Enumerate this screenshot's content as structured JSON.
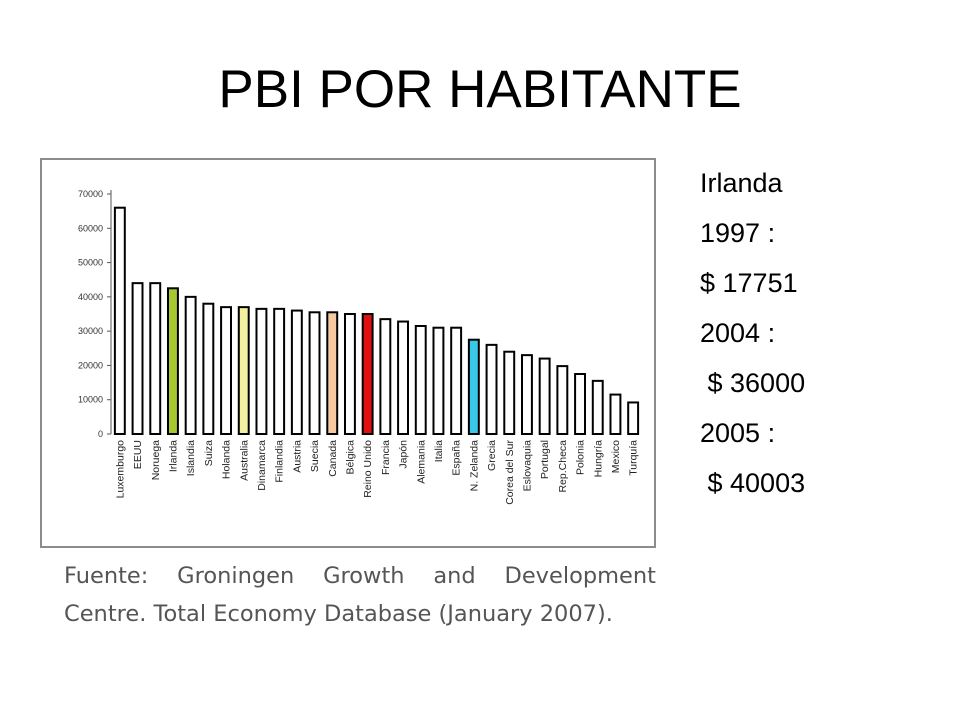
{
  "slide": {
    "title": "PBI POR HABITANTE",
    "source": "Fuente: Groningen Growth and Development Centre. Total Economy Database (January 2007)."
  },
  "side_panel": {
    "lines": [
      "Irlanda",
      "1997 :",
      "$ 17751",
      "2004 :",
      " $ 36000",
      "2005 :",
      " $ 40003"
    ]
  },
  "chart_data": {
    "type": "bar",
    "yticks": [
      0,
      10000,
      20000,
      30000,
      40000,
      50000,
      60000,
      70000
    ],
    "ylim": [
      0,
      70000
    ],
    "grid": false,
    "default_color": "#ffffff",
    "categories": [
      "Luxemburgo",
      "EEUU",
      "Noruega",
      "Irlanda",
      "Islandia",
      "Suiza",
      "Holanda",
      "Australia",
      "Dinamarca",
      "Finlandia",
      "Austria",
      "Suecia",
      "Canada",
      "Bélgica",
      "Reino Unido",
      "Francia",
      "Japón",
      "Alemania",
      "Italia",
      "España",
      "N. Zelanda",
      "Grecia",
      "Corea del Sur",
      "Eslovaquia",
      "Portugal",
      "Rep.Checa",
      "Polonia",
      "Hungría",
      "Mexico",
      "Turquía"
    ],
    "values": [
      66000,
      44000,
      44000,
      42500,
      40000,
      38000,
      37000,
      37000,
      36500,
      36500,
      36000,
      35500,
      35500,
      35000,
      35000,
      33500,
      32800,
      31500,
      31000,
      31000,
      27500,
      26000,
      24000,
      23000,
      22000,
      19800,
      17500,
      15500,
      11500,
      9200
    ],
    "highlights": [
      {
        "category": "Irlanda",
        "color": "#a8c832"
      },
      {
        "category": "Australia",
        "color": "#f3f0a0"
      },
      {
        "category": "Canada",
        "color": "#f7c9a0"
      },
      {
        "category": "Reino Unido",
        "color": "#e01010"
      },
      {
        "category": "N. Zelanda",
        "color": "#38c8e8"
      }
    ]
  }
}
